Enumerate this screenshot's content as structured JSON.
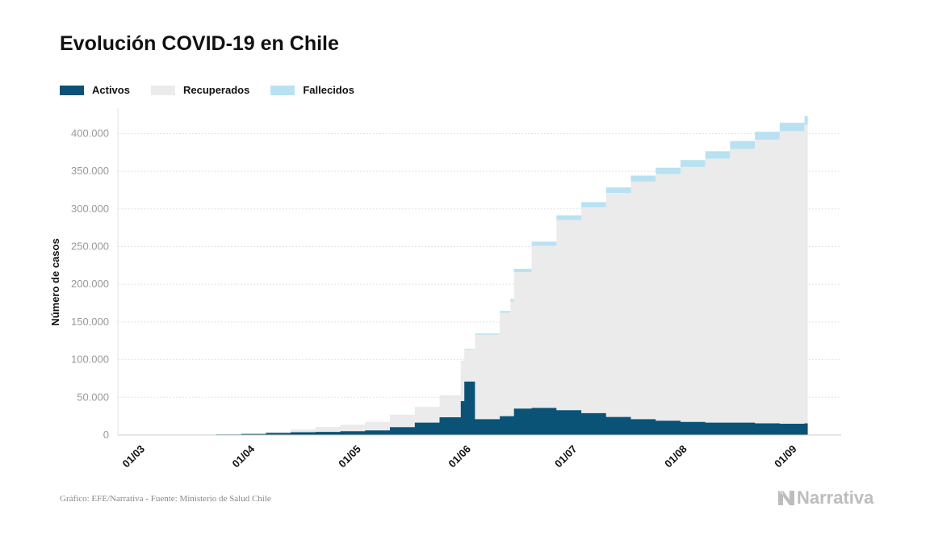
{
  "title": "Evolución COVID-19 en Chile",
  "legend": [
    {
      "label": "Activos",
      "color": "#0b5277"
    },
    {
      "label": "Recuperados",
      "color": "#ebebeb"
    },
    {
      "label": "Fallecidos",
      "color": "#b8e2f2"
    }
  ],
  "source": "Gráfico: EFE/Narrativa - Fuente: Ministerio de Salud Chile",
  "brand": "Narrativa",
  "chart_data": {
    "type": "area",
    "stacked": true,
    "ylabel": "Número de casos",
    "xlabel": "",
    "ylim": [
      0,
      440000
    ],
    "xlim": [
      "01/03",
      "06/09"
    ],
    "grid": true,
    "legend_position": "top-left",
    "y_ticks": [
      0,
      50000,
      100000,
      150000,
      200000,
      250000,
      300000,
      350000,
      400000
    ],
    "y_tick_labels": [
      "0",
      "50.000",
      "100.000",
      "150.000",
      "200.000",
      "250.000",
      "300.000",
      "350.000",
      "400.000"
    ],
    "x_tick_labels": [
      "01/03",
      "01/04",
      "01/05",
      "01/06",
      "01/07",
      "01/08",
      "01/09"
    ],
    "x": [
      "03/03",
      "10/03",
      "17/03",
      "24/03",
      "31/03",
      "07/04",
      "14/04",
      "21/04",
      "28/04",
      "05/05",
      "12/05",
      "19/05",
      "26/05",
      "01/06",
      "02/06",
      "05/06",
      "12/06",
      "15/06",
      "16/06",
      "21/06",
      "28/06",
      "05/07",
      "12/07",
      "19/07",
      "26/07",
      "02/08",
      "09/08",
      "16/08",
      "23/08",
      "30/08",
      "06/09"
    ],
    "series": [
      {
        "name": "Activos",
        "values": [
          0,
          100,
          300,
          700,
          1500,
          2800,
          3800,
          4200,
          5000,
          6200,
          10500,
          16500,
          23500,
          45000,
          71000,
          21000,
          25000,
          25000,
          35000,
          36000,
          33000,
          29000,
          24000,
          21000,
          19000,
          17500,
          16500,
          16500,
          15500,
          15000,
          15500
        ]
      },
      {
        "name": "Recuperados",
        "values": [
          0,
          0,
          0,
          0,
          200,
          1200,
          3500,
          6000,
          8500,
          11000,
          16000,
          20000,
          28000,
          52000,
          42000,
          112000,
          137000,
          152000,
          181000,
          215000,
          252000,
          273000,
          297000,
          315000,
          327000,
          338000,
          350000,
          363000,
          376000,
          388000,
          396000
        ]
      },
      {
        "name": "Fallecidos",
        "values": [
          0,
          0,
          0,
          5,
          20,
          50,
          100,
          200,
          250,
          300,
          400,
          500,
          800,
          1000,
          1200,
          1800,
          2500,
          3500,
          4500,
          5500,
          6500,
          7000,
          7500,
          8200,
          8700,
          9400,
          9900,
          10400,
          10800,
          11200,
          11700
        ]
      }
    ]
  }
}
